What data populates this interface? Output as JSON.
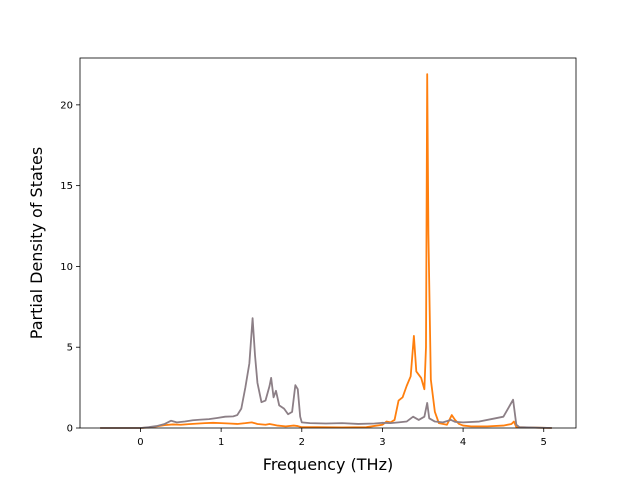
{
  "chart_data": {
    "type": "line",
    "title": "",
    "xlabel": "Frequency (THz)",
    "ylabel": "Partial Density of States",
    "xlim": [
      -0.75,
      5.4
    ],
    "ylim": [
      0,
      22.9
    ],
    "xticks": [
      0,
      1,
      2,
      3,
      4,
      5
    ],
    "yticks": [
      0,
      5,
      10,
      15,
      20
    ],
    "grid": false,
    "legend": "none",
    "series": [
      {
        "color": "#ff7f0e",
        "points": [
          [
            -0.5,
            0
          ],
          [
            0.0,
            0.0
          ],
          [
            0.1,
            0.03
          ],
          [
            0.2,
            0.1
          ],
          [
            0.3,
            0.18
          ],
          [
            0.4,
            0.22
          ],
          [
            0.5,
            0.2
          ],
          [
            0.6,
            0.24
          ],
          [
            0.7,
            0.27
          ],
          [
            0.8,
            0.3
          ],
          [
            0.9,
            0.32
          ],
          [
            1.0,
            0.3
          ],
          [
            1.1,
            0.28
          ],
          [
            1.2,
            0.25
          ],
          [
            1.3,
            0.3
          ],
          [
            1.38,
            0.35
          ],
          [
            1.45,
            0.25
          ],
          [
            1.55,
            0.2
          ],
          [
            1.6,
            0.25
          ],
          [
            1.65,
            0.2
          ],
          [
            1.7,
            0.15
          ],
          [
            1.8,
            0.1
          ],
          [
            1.9,
            0.15
          ],
          [
            1.95,
            0.12
          ],
          [
            2.0,
            0.05
          ],
          [
            2.2,
            0.05
          ],
          [
            2.5,
            0.04
          ],
          [
            2.8,
            0.05
          ],
          [
            3.0,
            0.2
          ],
          [
            3.05,
            0.4
          ],
          [
            3.1,
            0.35
          ],
          [
            3.15,
            0.5
          ],
          [
            3.2,
            1.7
          ],
          [
            3.25,
            1.9
          ],
          [
            3.3,
            2.6
          ],
          [
            3.35,
            3.2
          ],
          [
            3.39,
            5.7
          ],
          [
            3.42,
            3.5
          ],
          [
            3.48,
            3.1
          ],
          [
            3.52,
            2.4
          ],
          [
            3.54,
            5.0
          ],
          [
            3.555,
            21.9
          ],
          [
            3.57,
            12.0
          ],
          [
            3.6,
            3.0
          ],
          [
            3.65,
            1.0
          ],
          [
            3.7,
            0.3
          ],
          [
            3.8,
            0.2
          ],
          [
            3.86,
            0.8
          ],
          [
            3.9,
            0.5
          ],
          [
            3.95,
            0.25
          ],
          [
            4.0,
            0.15
          ],
          [
            4.1,
            0.1
          ],
          [
            4.3,
            0.1
          ],
          [
            4.5,
            0.15
          ],
          [
            4.6,
            0.25
          ],
          [
            4.63,
            0.4
          ],
          [
            4.66,
            0.05
          ],
          [
            5.1,
            0
          ]
        ]
      },
      {
        "color": "#8c7f86",
        "points": [
          [
            -0.5,
            0
          ],
          [
            0.0,
            0.0
          ],
          [
            0.1,
            0.05
          ],
          [
            0.2,
            0.12
          ],
          [
            0.3,
            0.25
          ],
          [
            0.38,
            0.45
          ],
          [
            0.45,
            0.35
          ],
          [
            0.55,
            0.4
          ],
          [
            0.65,
            0.48
          ],
          [
            0.75,
            0.52
          ],
          [
            0.85,
            0.55
          ],
          [
            0.95,
            0.62
          ],
          [
            1.05,
            0.7
          ],
          [
            1.15,
            0.72
          ],
          [
            1.2,
            0.8
          ],
          [
            1.25,
            1.2
          ],
          [
            1.3,
            2.5
          ],
          [
            1.35,
            4.0
          ],
          [
            1.39,
            6.8
          ],
          [
            1.42,
            4.5
          ],
          [
            1.45,
            2.8
          ],
          [
            1.5,
            1.6
          ],
          [
            1.55,
            1.7
          ],
          [
            1.6,
            2.6
          ],
          [
            1.62,
            3.1
          ],
          [
            1.65,
            1.9
          ],
          [
            1.68,
            2.3
          ],
          [
            1.72,
            1.4
          ],
          [
            1.78,
            1.2
          ],
          [
            1.83,
            0.85
          ],
          [
            1.88,
            1.0
          ],
          [
            1.92,
            2.65
          ],
          [
            1.95,
            2.4
          ],
          [
            1.98,
            0.7
          ],
          [
            2.0,
            0.35
          ],
          [
            2.1,
            0.3
          ],
          [
            2.3,
            0.28
          ],
          [
            2.5,
            0.3
          ],
          [
            2.7,
            0.25
          ],
          [
            2.9,
            0.28
          ],
          [
            3.0,
            0.32
          ],
          [
            3.1,
            0.3
          ],
          [
            3.2,
            0.35
          ],
          [
            3.3,
            0.4
          ],
          [
            3.38,
            0.7
          ],
          [
            3.45,
            0.5
          ],
          [
            3.52,
            0.7
          ],
          [
            3.555,
            1.55
          ],
          [
            3.58,
            0.6
          ],
          [
            3.65,
            0.4
          ],
          [
            3.75,
            0.35
          ],
          [
            3.85,
            0.5
          ],
          [
            3.9,
            0.38
          ],
          [
            4.0,
            0.35
          ],
          [
            4.2,
            0.4
          ],
          [
            4.4,
            0.6
          ],
          [
            4.5,
            0.7
          ],
          [
            4.58,
            1.4
          ],
          [
            4.62,
            1.75
          ],
          [
            4.66,
            0.2
          ],
          [
            4.7,
            0.05
          ],
          [
            5.1,
            0
          ]
        ]
      }
    ]
  }
}
